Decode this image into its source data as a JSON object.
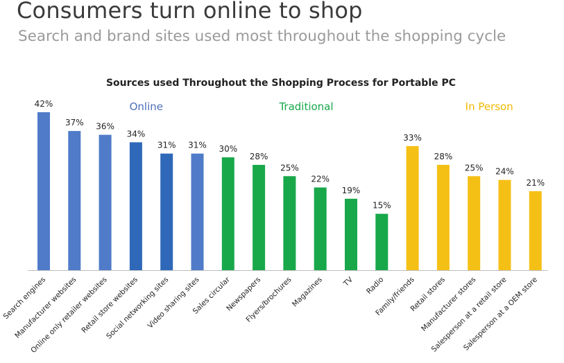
{
  "header": {
    "title": "Consumers turn online to shop",
    "subtitle": "Search and brand sites used most throughout the shopping cycle"
  },
  "chart_data": {
    "type": "bar",
    "title": "Sources used Throughout the Shopping Process for Portable PC",
    "xlabel": "",
    "ylabel": "",
    "ylim": [
      0,
      42
    ],
    "value_suffix": "%",
    "grid": false,
    "groups": [
      {
        "name": "Online",
        "color": "#4f7bc9",
        "start": 0,
        "end": 5
      },
      {
        "name": "Traditional",
        "color": "#18a84a",
        "start": 6,
        "end": 11
      },
      {
        "name": "In Person",
        "color": "#f5c016",
        "start": 12,
        "end": 16
      }
    ],
    "categories": [
      "Search engines",
      "Manufacturer websites",
      "Online only retailer websites",
      "Retail store websites",
      "Social networking sites",
      "Video sharing sites",
      "Sales circular",
      "Newspapers",
      "Flyers/brochures",
      "Magazines",
      "TV",
      "Radio",
      "Family/friends",
      "Retail stores",
      "Manufacturer stores",
      "Salesperson at a retail store",
      "Salesperson at a OEM store"
    ],
    "values": [
      42,
      37,
      36,
      34,
      31,
      31,
      30,
      28,
      25,
      22,
      19,
      15,
      33,
      28,
      25,
      24,
      21
    ],
    "bar_colors": [
      "#4f7bc9",
      "#4f7bc9",
      "#4f7bc9",
      "#2f68b9",
      "#2f68b9",
      "#4f7bc9",
      "#18a84a",
      "#18a84a",
      "#18a84a",
      "#18a84a",
      "#18a84a",
      "#18a84a",
      "#f5c016",
      "#f5c016",
      "#f5c016",
      "#f5c016",
      "#f5c016"
    ],
    "group_label_colors": [
      "#4f6fb9",
      "#18a84a",
      "#f2b900"
    ]
  }
}
